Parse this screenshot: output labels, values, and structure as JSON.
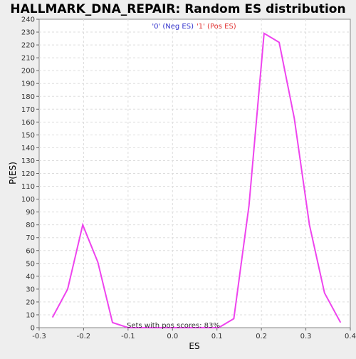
{
  "chart_data": {
    "type": "line",
    "title": "HALLMARK_DNA_REPAIR: Random ES distribution",
    "xlabel": "ES",
    "ylabel": "P(ES)",
    "xlim": [
      -0.3,
      0.4
    ],
    "ylim": [
      0,
      240
    ],
    "x_ticks": [
      "-0.3",
      "-0.2",
      "-0.1",
      "0.0",
      "0.1",
      "0.2",
      "0.3",
      "0.4"
    ],
    "y_ticks": [
      "0",
      "10",
      "20",
      "30",
      "40",
      "50",
      "60",
      "70",
      "80",
      "90",
      "100",
      "110",
      "120",
      "130",
      "140",
      "150",
      "160",
      "170",
      "180",
      "190",
      "200",
      "210",
      "220",
      "230",
      "240"
    ],
    "grid": true,
    "legend": {
      "neg_label": "'0' (Neg ES)",
      "pos_label": "'1' (Pos ES)",
      "neg_color": "#3333cc",
      "pos_color": "#e03030",
      "placement": "top-center"
    },
    "annotation": "Sets with pos scores: 83%",
    "series": [
      {
        "color": "#ee44ee",
        "x": [
          -0.27,
          -0.236,
          -0.202,
          -0.168,
          -0.135,
          -0.1,
          -0.066,
          -0.032,
          0.002,
          0.036,
          0.07,
          0.104,
          0.138,
          0.172,
          0.206,
          0.24,
          0.274,
          0.308,
          0.342,
          0.378
        ],
        "y": [
          8,
          30,
          80,
          51,
          4,
          0,
          0,
          0,
          0,
          0,
          0,
          0,
          7,
          95,
          229,
          222,
          163,
          80,
          27,
          4
        ]
      }
    ]
  }
}
